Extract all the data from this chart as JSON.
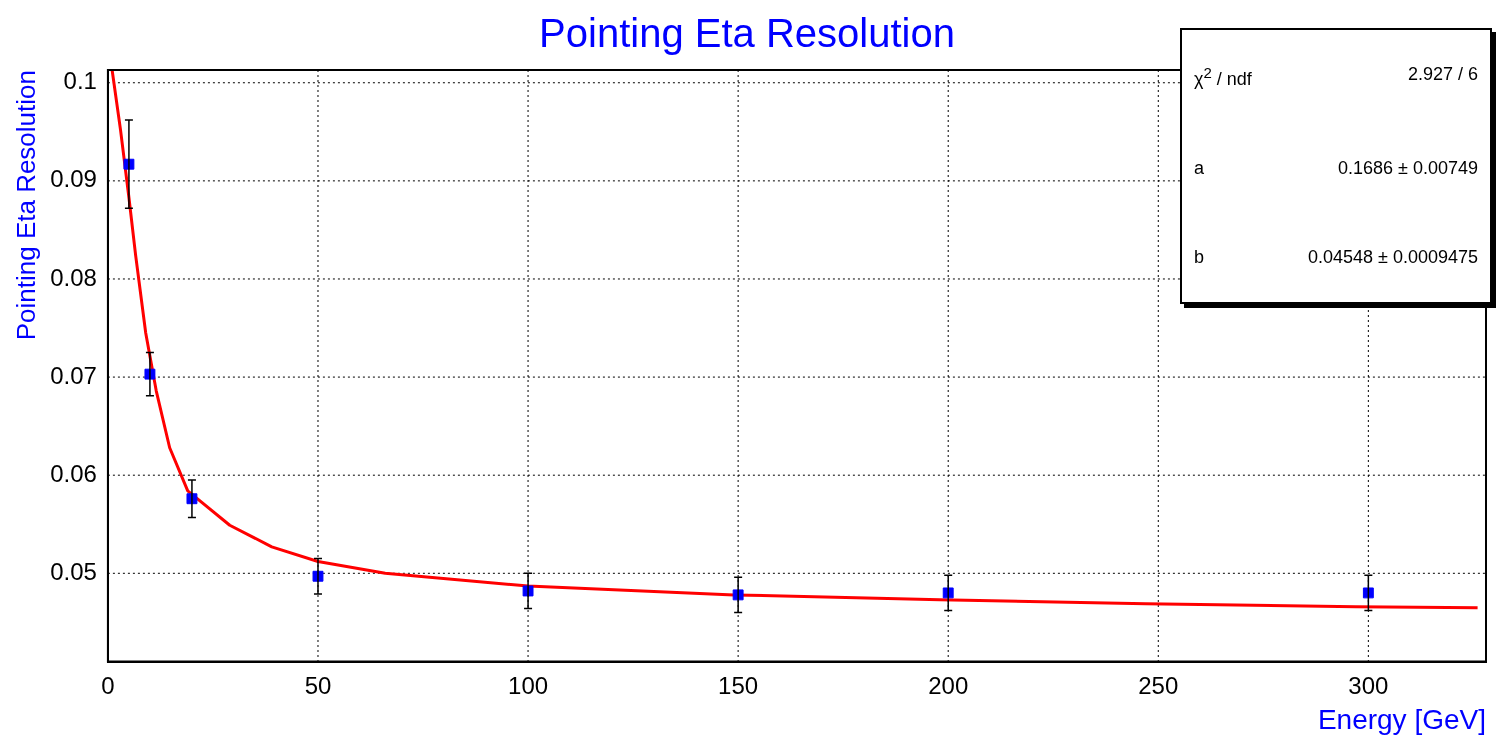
{
  "chart_data": {
    "type": "scatter",
    "title": "Pointing Eta Resolution",
    "xlabel": "Energy [GeV]",
    "ylabel": "Pointing Eta Resolution",
    "xlim": [
      0,
      328
    ],
    "ylim": [
      0.041,
      0.1013
    ],
    "xticks": [
      0,
      50,
      100,
      150,
      200,
      250,
      300
    ],
    "yticks": [
      0.05,
      0.06,
      0.07,
      0.08,
      0.09,
      0.1
    ],
    "grid": true,
    "legend": false,
    "marker": "square",
    "annotations": [
      "χ$^{2}$ / ndf",
      "2.927 / 6",
      "a",
      "0.1686 ± 0.00749",
      "b",
      "0.04548 ± 0.0009475"
    ],
    "series": [
      {
        "type": "scatter",
        "color": "#0000ff",
        "x": [
          5,
          10,
          20,
          50,
          100,
          150,
          200,
          300
        ],
        "values": [
          0.0917,
          0.0703,
          0.0576,
          0.0497,
          0.0482,
          0.0478,
          0.048,
          0.048
        ],
        "errors": [
          0.0045,
          0.0022,
          0.0019,
          0.0018,
          0.0018,
          0.0018,
          0.0018,
          0.0018
        ]
      },
      {
        "type": "line",
        "color": "#ff0000",
        "marker": "none",
        "x": [
          1,
          3,
          5,
          6.6,
          9,
          11.5,
          14.7,
          19,
          29,
          39,
          50,
          66,
          100,
          149,
          198,
          247,
          297,
          326
        ],
        "values": [
          0.1013,
          0.0952,
          0.0883,
          0.0824,
          0.0745,
          0.0686,
          0.0628,
          0.0584,
          0.0549,
          0.0527,
          0.0512,
          0.05,
          0.0487,
          0.0478,
          0.0473,
          0.0469,
          0.0466,
          0.0465
        ]
      }
    ]
  }
}
